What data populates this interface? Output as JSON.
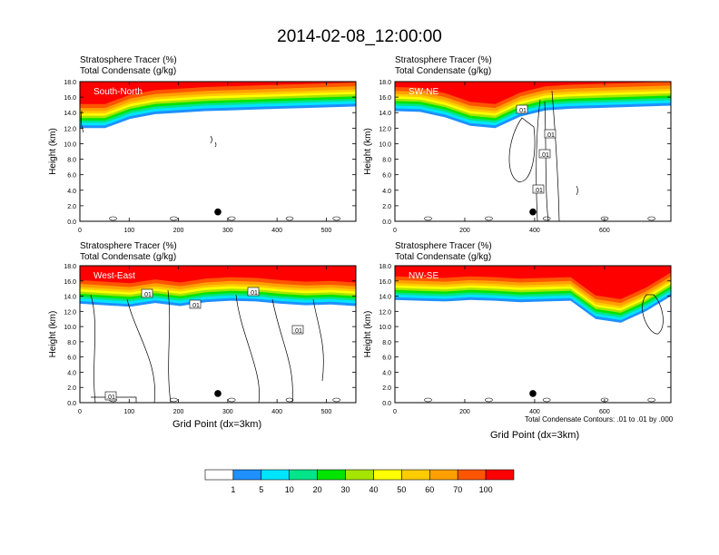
{
  "title": "2014-02-08_12:00:00",
  "footnote": "Total Condensate Contours: .01 to .01 by .000",
  "xlabel": "Grid Point (dx=3km)",
  "ylabel": "Height (km)",
  "label_line1": "Stratosphere Tracer   (%)",
  "label_line2": "Total Condensate   (g/kg)",
  "contour_label": ".01",
  "colorbar": {
    "levels": [
      "1",
      "5",
      "10",
      "20",
      "30",
      "40",
      "50",
      "60",
      "70",
      "100"
    ],
    "colors": [
      "#ffffff",
      "#1e90ff",
      "#00e5ff",
      "#00e58a",
      "#00e500",
      "#a6e500",
      "#ffff00",
      "#ffcc00",
      "#ffa000",
      "#ff5500",
      "#ff0000"
    ]
  },
  "chart_data": [
    {
      "type": "heatmap",
      "name": "South-North",
      "xlim": [
        0,
        560
      ],
      "ylim": [
        0,
        18
      ],
      "xticks": [
        0,
        100,
        200,
        300,
        400,
        500
      ],
      "yticks": [
        "0.0",
        "2.0",
        "4.0",
        "6.0",
        "8.0",
        "10.0",
        "12.0",
        "14.0",
        "16.0",
        "18.0"
      ],
      "tracer_base_km": [
        12,
        12,
        13.2,
        13.8,
        14,
        14.2,
        14.3,
        14.4,
        14.5,
        14.6,
        14.7,
        14.8
      ],
      "marker_x": 280
    },
    {
      "type": "heatmap",
      "name": "SW-NE",
      "xlim": [
        0,
        790
      ],
      "ylim": [
        0,
        18
      ],
      "xticks": [
        0,
        200,
        400,
        600
      ],
      "yticks": [
        "0.0",
        "2.0",
        "4.0",
        "6.0",
        "8.0",
        "10.0",
        "12.0",
        "14.0",
        "16.0",
        "18.0"
      ],
      "tracer_base_km": [
        14.2,
        14.1,
        13.4,
        12.3,
        12,
        13.5,
        14.3,
        14.5,
        14.6,
        14.7,
        14.8,
        14.9
      ],
      "marker_x": 395
    },
    {
      "type": "heatmap",
      "name": "West-East",
      "xlim": [
        0,
        560
      ],
      "ylim": [
        0,
        18
      ],
      "xticks": [
        0,
        100,
        200,
        300,
        400,
        500
      ],
      "yticks": [
        "0.0",
        "2.0",
        "4.0",
        "6.0",
        "8.0",
        "10.0",
        "12.0",
        "14.0",
        "16.0",
        "18.0"
      ],
      "tracer_base_km": [
        13,
        12.8,
        12.6,
        13.1,
        12.7,
        13.2,
        13.4,
        13.3,
        13,
        12.8,
        12.9,
        12.7
      ],
      "marker_x": 280
    },
    {
      "type": "heatmap",
      "name": "NW-SE",
      "xlim": [
        0,
        790
      ],
      "ylim": [
        0,
        18
      ],
      "xticks": [
        0,
        200,
        400,
        600
      ],
      "yticks": [
        "0.0",
        "2.0",
        "4.0",
        "6.0",
        "8.0",
        "10.0",
        "12.0",
        "14.0",
        "16.0",
        "18.0"
      ],
      "tracer_base_km": [
        13.5,
        13.4,
        13.3,
        13.5,
        13.4,
        13.2,
        13.3,
        13.4,
        11,
        10.5,
        12,
        14
      ],
      "marker_x": 395
    }
  ]
}
